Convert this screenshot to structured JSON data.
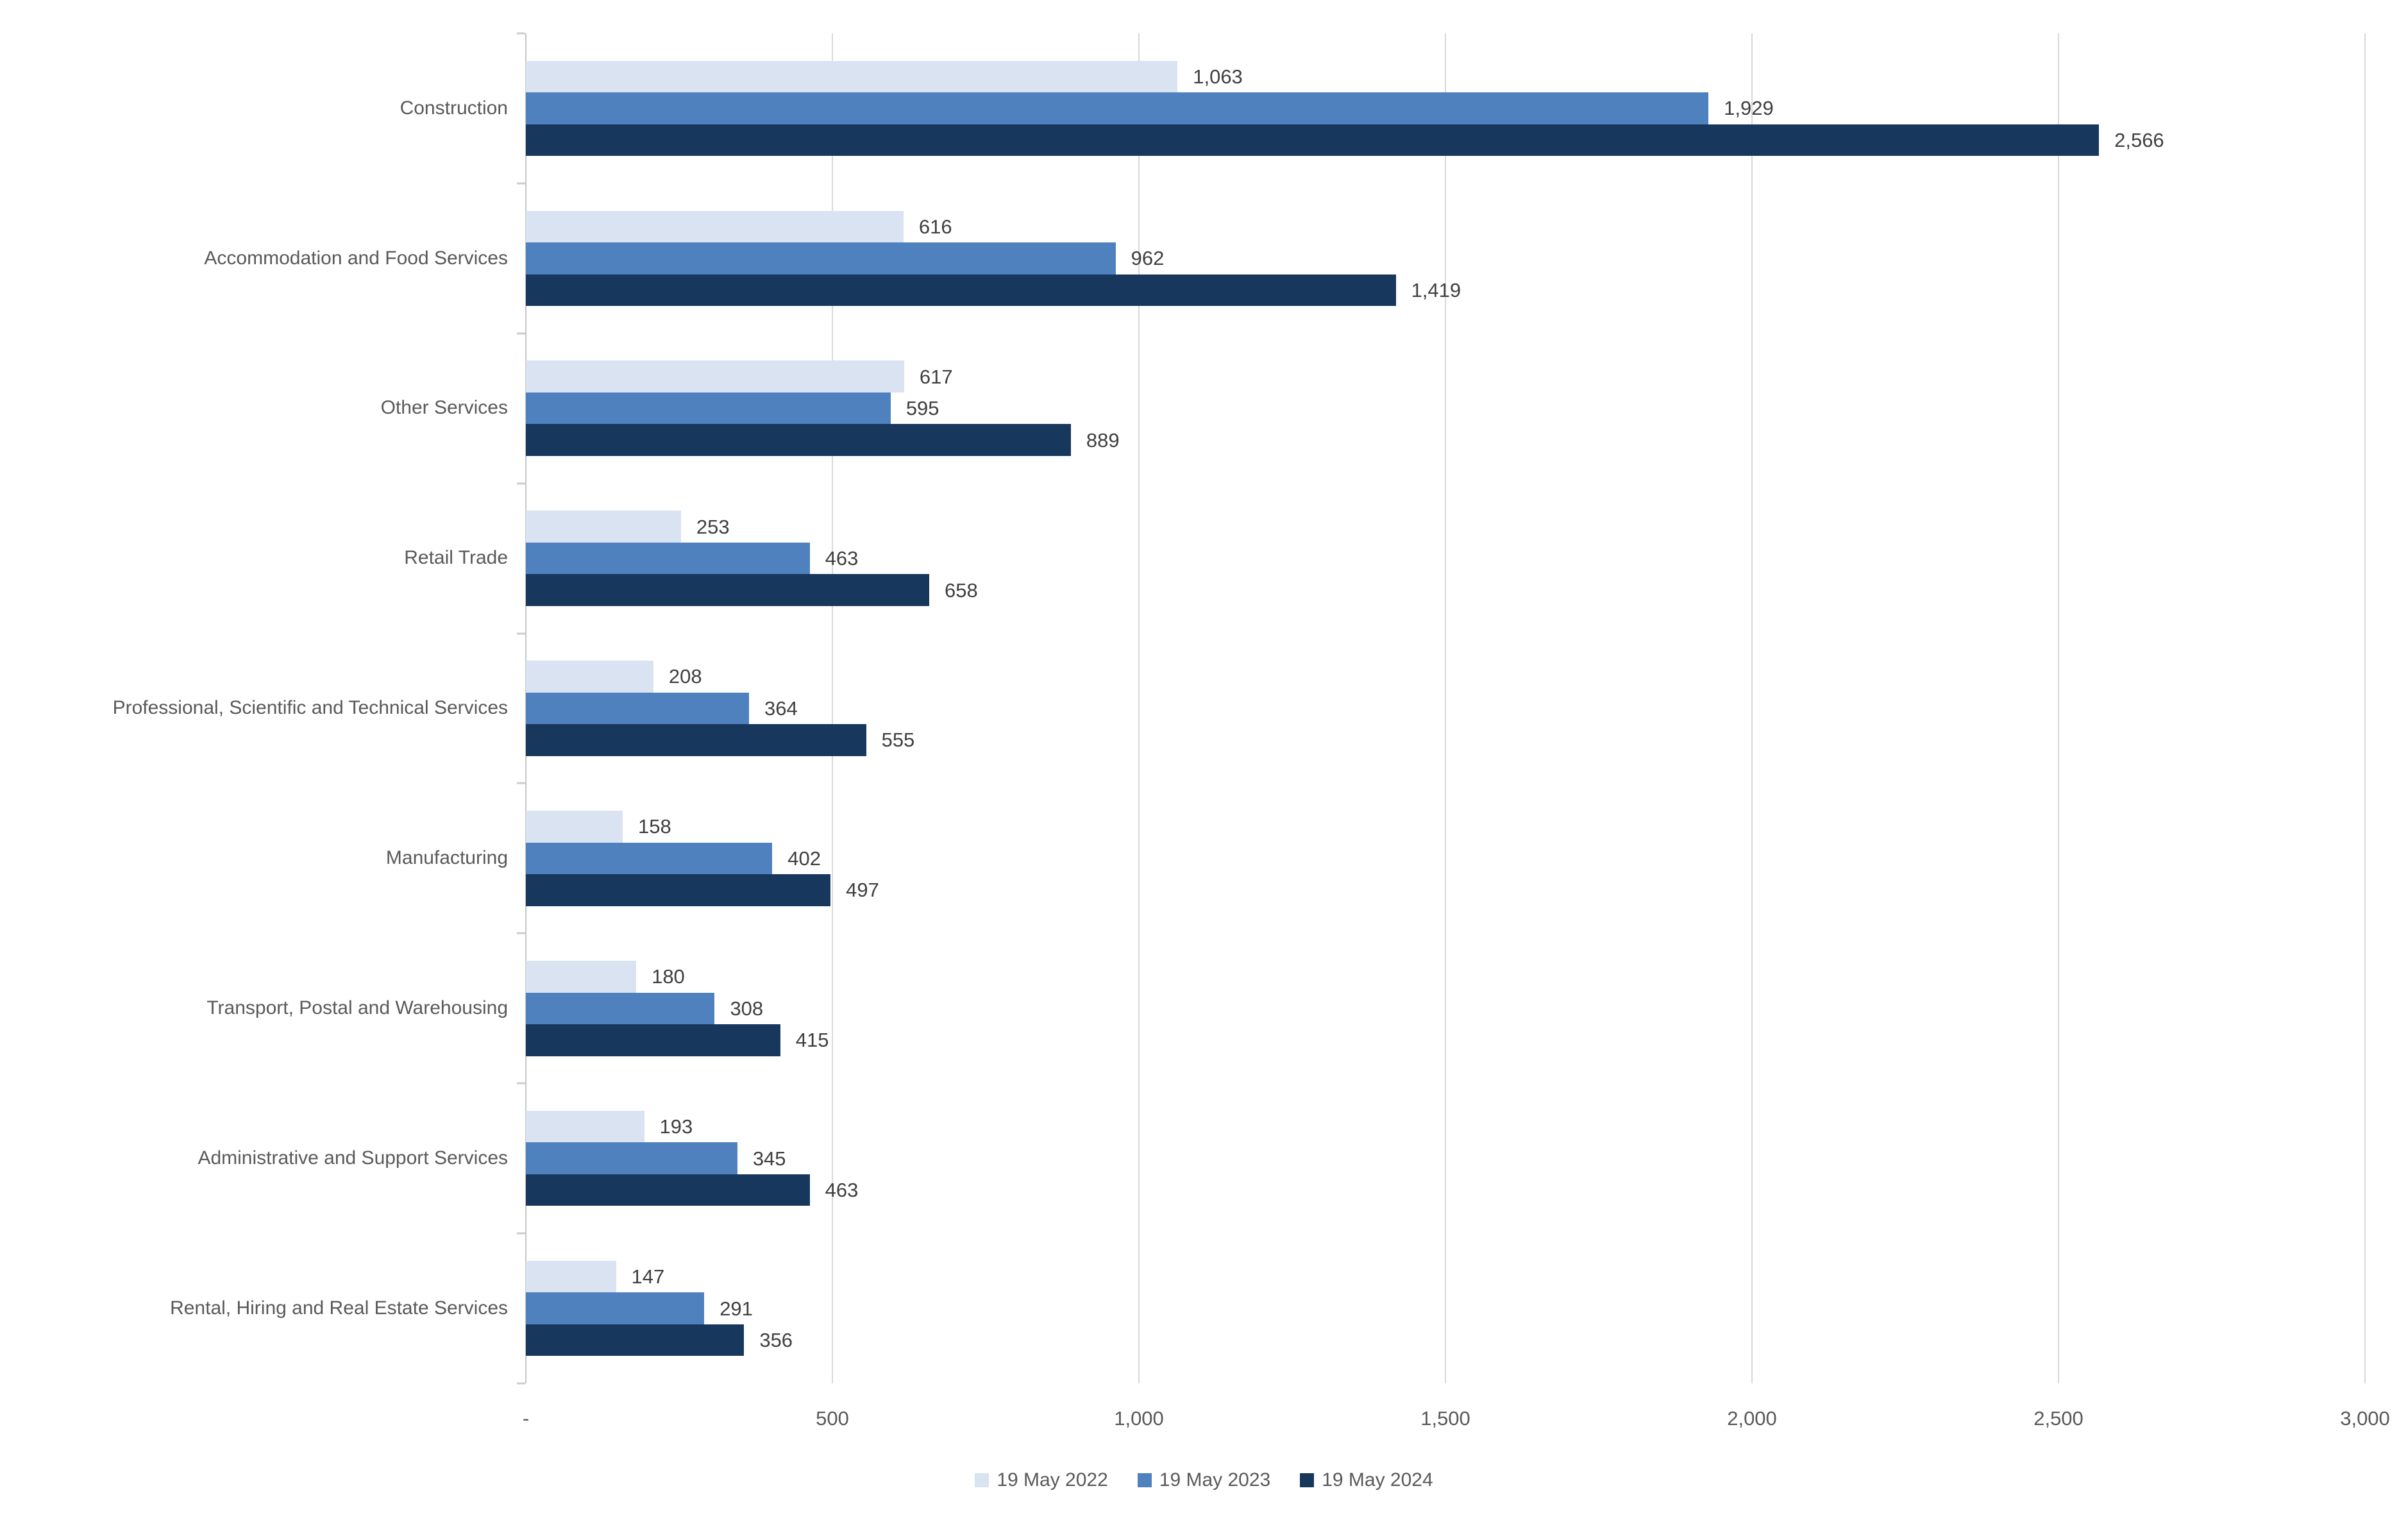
{
  "chart_data": {
    "type": "bar",
    "orientation": "horizontal",
    "title": "",
    "categories": [
      "Construction",
      "Accommodation and Food Services",
      "Other Services",
      "Retail Trade",
      "Professional, Scientific and Technical Services",
      "Manufacturing",
      "Transport, Postal and Warehousing",
      "Administrative and Support Services",
      "Rental, Hiring and Real Estate Services"
    ],
    "series": [
      {
        "name": "19 May 2022",
        "color": "#DAE3F1",
        "values": [
          1063,
          616,
          617,
          253,
          208,
          158,
          180,
          193,
          147
        ],
        "labels": [
          "1,063",
          "616",
          "617",
          "253",
          "208",
          "158",
          "180",
          "193",
          "147"
        ]
      },
      {
        "name": "19 May 2023",
        "color": "#4E81BD",
        "values": [
          1929,
          962,
          595,
          463,
          364,
          402,
          308,
          345,
          291
        ],
        "labels": [
          "1,929",
          "962",
          "595",
          "463",
          "364",
          "402",
          "308",
          "345",
          "291"
        ]
      },
      {
        "name": "19 May 2024",
        "color": "#18375C",
        "values": [
          2566,
          1419,
          889,
          658,
          555,
          497,
          415,
          463,
          356
        ],
        "labels": [
          "2,566",
          "1,419",
          "889",
          "658",
          "555",
          "497",
          "415",
          "463",
          "356"
        ]
      }
    ],
    "x_axis": {
      "min": 0,
      "max": 3000,
      "tick_interval": 500,
      "ticks": [
        {
          "value": 0,
          "label": "-"
        },
        {
          "value": 500,
          "label": "500"
        },
        {
          "value": 1000,
          "label": "1,000"
        },
        {
          "value": 1500,
          "label": "1,500"
        },
        {
          "value": 2000,
          "label": "2,000"
        },
        {
          "value": 2500,
          "label": "2,500"
        },
        {
          "value": 3000,
          "label": "3,000"
        }
      ]
    },
    "grid": true,
    "legend_position": "bottom",
    "xlabel": "",
    "ylabel": ""
  },
  "colors": {
    "background": "#FFFFFF",
    "gridline": "#D9D9D9",
    "axis_line": "#C6C6C6",
    "category_tick": "#CDCDCD",
    "category_text": "#595959",
    "axis_text": "#595959",
    "data_label_text": "#3F3F3F",
    "legend_text": "#595959"
  }
}
